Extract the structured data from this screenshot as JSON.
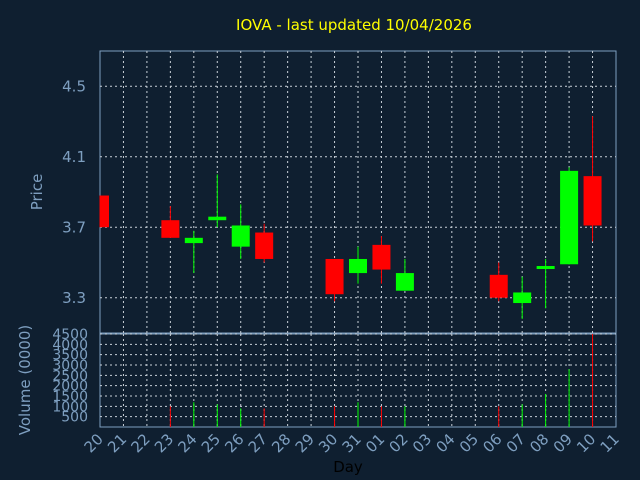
{
  "chart_data": {
    "type": "candlestick",
    "title": "IOVA - last updated 10/04/2026",
    "ylabel": "Price",
    "volume_label": "Volume (0000)",
    "xlabel": "Day",
    "ylim": [
      3.1,
      4.7
    ],
    "yticks": [
      "3.3",
      "3.7",
      "4.1",
      "4.5"
    ],
    "volume_ylim": [
      0,
      4500
    ],
    "volume_ticks": [
      "500",
      "1000",
      "1500",
      "2000",
      "2500",
      "3000",
      "3500",
      "4000",
      "4500"
    ],
    "categories": [
      "20",
      "21",
      "22",
      "23",
      "24",
      "25",
      "26",
      "27",
      "28",
      "29",
      "30",
      "31",
      "01",
      "02",
      "03",
      "04",
      "05",
      "06",
      "07",
      "08",
      "09",
      "10",
      "11"
    ],
    "up_color": "#00ff00",
    "down_color": "#ff0000",
    "candles": [
      {
        "day": "20",
        "open": 3.88,
        "close": 3.7,
        "high": 3.88,
        "low": 3.7,
        "volume": 0
      },
      {
        "day": "23",
        "open": 3.74,
        "close": 3.64,
        "high": 3.82,
        "low": 3.64,
        "volume": 1000
      },
      {
        "day": "24",
        "open": 3.61,
        "close": 3.64,
        "high": 3.68,
        "low": 3.44,
        "volume": 1200
      },
      {
        "day": "25",
        "open": 3.74,
        "close": 3.76,
        "high": 4.0,
        "low": 3.7,
        "volume": 1100
      },
      {
        "day": "26",
        "open": 3.59,
        "close": 3.71,
        "high": 3.83,
        "low": 3.52,
        "volume": 900
      },
      {
        "day": "27",
        "open": 3.67,
        "close": 3.52,
        "high": 3.72,
        "low": 3.5,
        "volume": 900
      },
      {
        "day": "30",
        "open": 3.52,
        "close": 3.32,
        "high": 3.52,
        "low": 3.28,
        "volume": 1000
      },
      {
        "day": "31",
        "open": 3.44,
        "close": 3.52,
        "high": 3.59,
        "low": 3.38,
        "volume": 1200
      },
      {
        "day": "01",
        "open": 3.6,
        "close": 3.46,
        "high": 3.65,
        "low": 3.38,
        "volume": 1000
      },
      {
        "day": "02",
        "open": 3.34,
        "close": 3.44,
        "high": 3.52,
        "low": 3.34,
        "volume": 1000
      },
      {
        "day": "06",
        "open": 3.43,
        "close": 3.3,
        "high": 3.5,
        "low": 3.28,
        "volume": 1000
      },
      {
        "day": "07",
        "open": 3.27,
        "close": 3.33,
        "high": 3.42,
        "low": 3.18,
        "volume": 1100
      },
      {
        "day": "08",
        "open": 3.47,
        "close": 3.48,
        "high": 3.52,
        "low": 3.24,
        "volume": 1600
      },
      {
        "day": "09",
        "open": 3.49,
        "close": 4.02,
        "high": 4.04,
        "low": 3.49,
        "volume": 2800
      },
      {
        "day": "10",
        "open": 3.99,
        "close": 3.71,
        "high": 4.33,
        "low": 3.62,
        "volume": 4500
      }
    ]
  }
}
